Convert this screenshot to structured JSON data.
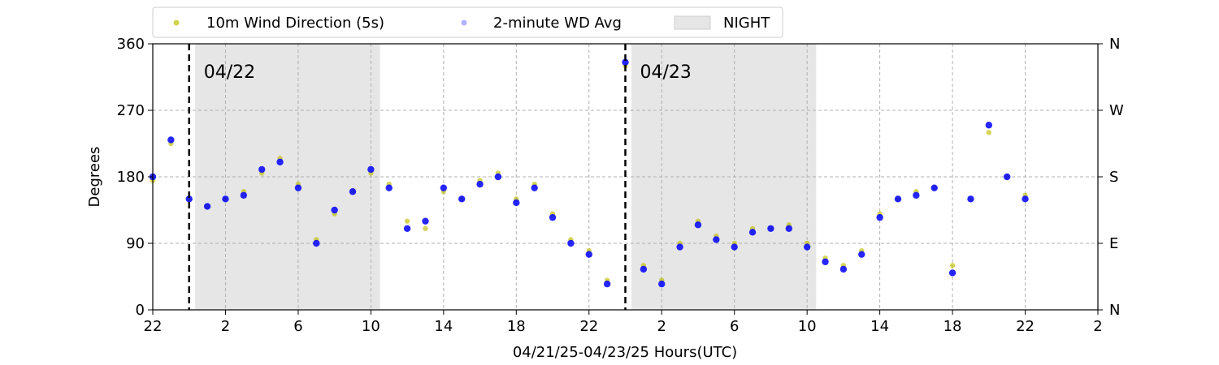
{
  "chart_data": {
    "type": "scatter",
    "xlabel": "04/21/25-04/23/25  Hours(UTC)",
    "ylabel": "Degrees",
    "xlim": [
      "2025-04-21 22:00",
      "2025-04-24 02:00"
    ],
    "ylim": [
      0,
      360
    ],
    "grid": true,
    "legend_position": "top",
    "x_tick_labels": [
      "22",
      "2",
      "6",
      "10",
      "14",
      "18",
      "22",
      "2",
      "6",
      "10",
      "14",
      "18",
      "22",
      "2"
    ],
    "y_tick_labels": [
      "0",
      "90",
      "180",
      "270",
      "360"
    ],
    "y2_tick_labels": [
      "N",
      "E",
      "S",
      "W",
      "N"
    ],
    "legend": [
      "10m Wind Direction (5s)",
      "2-minute WD Avg",
      "NIGHT"
    ],
    "day_labels": [
      {
        "text": "04/22",
        "time": "2025-04-22 00:00"
      },
      {
        "text": "04/23",
        "time": "2025-04-23 00:00"
      }
    ],
    "night_periods": [
      {
        "start": "2025-04-22 00:20",
        "end": "2025-04-22 10:30"
      },
      {
        "start": "2025-04-23 00:20",
        "end": "2025-04-23 10:30"
      }
    ],
    "colors": {
      "series_5s": "#bfbf00",
      "series_2min": "#0000ff",
      "night": "#e6e6e6",
      "midnight_line": "#000000"
    },
    "series": [
      {
        "name": "10m Wind Direction (5s)",
        "x": [
          "2025-04-21 22:00",
          "2025-04-21 23:00",
          "2025-04-22 00:00",
          "2025-04-22 01:00",
          "2025-04-22 02:00",
          "2025-04-22 03:00",
          "2025-04-22 04:00",
          "2025-04-22 05:00",
          "2025-04-22 06:00",
          "2025-04-22 07:00",
          "2025-04-22 08:00",
          "2025-04-22 09:00",
          "2025-04-22 10:00",
          "2025-04-22 11:00",
          "2025-04-22 12:00",
          "2025-04-22 13:00",
          "2025-04-22 14:00",
          "2025-04-22 15:00",
          "2025-04-22 16:00",
          "2025-04-22 17:00",
          "2025-04-22 18:00",
          "2025-04-22 19:00",
          "2025-04-22 20:00",
          "2025-04-22 21:00",
          "2025-04-22 22:00",
          "2025-04-22 23:00",
          "2025-04-23 00:00",
          "2025-04-23 01:00",
          "2025-04-23 02:00",
          "2025-04-23 03:00",
          "2025-04-23 04:00",
          "2025-04-23 05:00",
          "2025-04-23 06:00",
          "2025-04-23 07:00",
          "2025-04-23 08:00",
          "2025-04-23 09:00",
          "2025-04-23 10:00",
          "2025-04-23 11:00",
          "2025-04-23 12:00",
          "2025-04-23 13:00",
          "2025-04-23 14:00",
          "2025-04-23 15:00",
          "2025-04-23 16:00",
          "2025-04-23 17:00",
          "2025-04-23 18:00",
          "2025-04-23 19:00",
          "2025-04-23 20:00",
          "2025-04-23 21:00",
          "2025-04-23 22:00"
        ],
        "y": [
          175,
          225,
          150,
          140,
          150,
          160,
          185,
          205,
          170,
          95,
          130,
          160,
          185,
          170,
          120,
          110,
          160,
          150,
          175,
          185,
          150,
          170,
          130,
          95,
          80,
          40,
          330,
          60,
          40,
          90,
          120,
          100,
          90,
          110,
          110,
          115,
          90,
          70,
          60,
          80,
          130,
          150,
          160,
          165,
          60,
          150,
          240,
          180,
          155
        ]
      },
      {
        "name": "2-minute WD Avg",
        "x": [
          "2025-04-21 22:00",
          "2025-04-21 23:00",
          "2025-04-22 00:00",
          "2025-04-22 01:00",
          "2025-04-22 02:00",
          "2025-04-22 03:00",
          "2025-04-22 04:00",
          "2025-04-22 05:00",
          "2025-04-22 06:00",
          "2025-04-22 07:00",
          "2025-04-22 08:00",
          "2025-04-22 09:00",
          "2025-04-22 10:00",
          "2025-04-22 11:00",
          "2025-04-22 12:00",
          "2025-04-22 13:00",
          "2025-04-22 14:00",
          "2025-04-22 15:00",
          "2025-04-22 16:00",
          "2025-04-22 17:00",
          "2025-04-22 18:00",
          "2025-04-22 19:00",
          "2025-04-22 20:00",
          "2025-04-22 21:00",
          "2025-04-22 22:00",
          "2025-04-22 23:00",
          "2025-04-23 00:00",
          "2025-04-23 01:00",
          "2025-04-23 02:00",
          "2025-04-23 03:00",
          "2025-04-23 04:00",
          "2025-04-23 05:00",
          "2025-04-23 06:00",
          "2025-04-23 07:00",
          "2025-04-23 08:00",
          "2025-04-23 09:00",
          "2025-04-23 10:00",
          "2025-04-23 11:00",
          "2025-04-23 12:00",
          "2025-04-23 13:00",
          "2025-04-23 14:00",
          "2025-04-23 15:00",
          "2025-04-23 16:00",
          "2025-04-23 17:00",
          "2025-04-23 18:00",
          "2025-04-23 19:00",
          "2025-04-23 20:00",
          "2025-04-23 21:00",
          "2025-04-23 22:00"
        ],
        "y": [
          180,
          230,
          150,
          140,
          150,
          155,
          190,
          200,
          165,
          90,
          135,
          160,
          190,
          165,
          110,
          120,
          165,
          150,
          170,
          180,
          145,
          165,
          125,
          90,
          75,
          35,
          335,
          55,
          35,
          85,
          115,
          95,
          85,
          105,
          110,
          110,
          85,
          65,
          55,
          75,
          125,
          150,
          155,
          165,
          50,
          150,
          250,
          180,
          150
        ]
      }
    ]
  }
}
